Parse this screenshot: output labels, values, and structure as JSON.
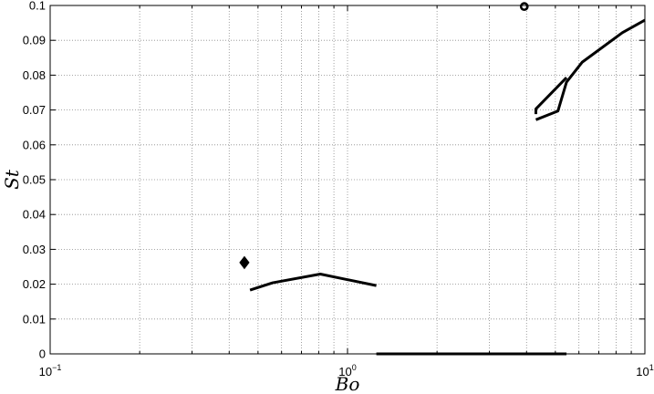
{
  "chart_data": {
    "type": "line",
    "title": "",
    "xlabel": "Bo",
    "ylabel": "St",
    "xscale": "log",
    "xlim": [
      0.1,
      10
    ],
    "ylim": [
      0,
      0.1
    ],
    "grid": true,
    "x_ticks": [
      {
        "value": 0.1,
        "base": "10",
        "exp": "−1"
      },
      {
        "value": 1,
        "base": "10",
        "exp": "0"
      },
      {
        "value": 10,
        "base": "10",
        "exp": "1"
      }
    ],
    "y_ticks": [
      {
        "value": 0,
        "label": "0"
      },
      {
        "value": 0.01,
        "label": "0.01"
      },
      {
        "value": 0.02,
        "label": "0.02"
      },
      {
        "value": 0.03,
        "label": "0.03"
      },
      {
        "value": 0.04,
        "label": "0.04"
      },
      {
        "value": 0.05,
        "label": "0.05"
      },
      {
        "value": 0.06,
        "label": "0.06"
      },
      {
        "value": 0.07,
        "label": "0.07"
      },
      {
        "value": 0.08,
        "label": "0.08"
      },
      {
        "value": 0.09,
        "label": "0.09"
      },
      {
        "value": 0.1,
        "label": "0.1"
      }
    ],
    "lines": [
      {
        "id": "mid",
        "points": [
          [
            0.47,
            0.0183
          ],
          [
            0.56,
            0.0204
          ],
          [
            0.81,
            0.0229
          ],
          [
            1.25,
            0.0196
          ]
        ]
      },
      {
        "id": "bottom",
        "points": [
          [
            1.25,
            0.0
          ],
          [
            5.45,
            0.0
          ]
        ]
      },
      {
        "id": "upper",
        "points": [
          [
            4.3,
            0.0672
          ],
          [
            5.1,
            0.0697
          ],
          [
            5.45,
            0.078
          ],
          [
            6.15,
            0.0837
          ],
          [
            8.4,
            0.0922
          ],
          [
            10,
            0.0958
          ]
        ]
      },
      {
        "id": "upper-inner",
        "points": [
          [
            4.3,
            0.0688
          ],
          [
            4.3,
            0.0703
          ],
          [
            5.45,
            0.0793
          ]
        ]
      }
    ],
    "markers": [
      {
        "id": "diamond",
        "shape": "diamond",
        "x": 0.45,
        "y": 0.0262
      },
      {
        "id": "circle",
        "shape": "circle",
        "x": 3.93,
        "y": 0.0997
      }
    ]
  }
}
